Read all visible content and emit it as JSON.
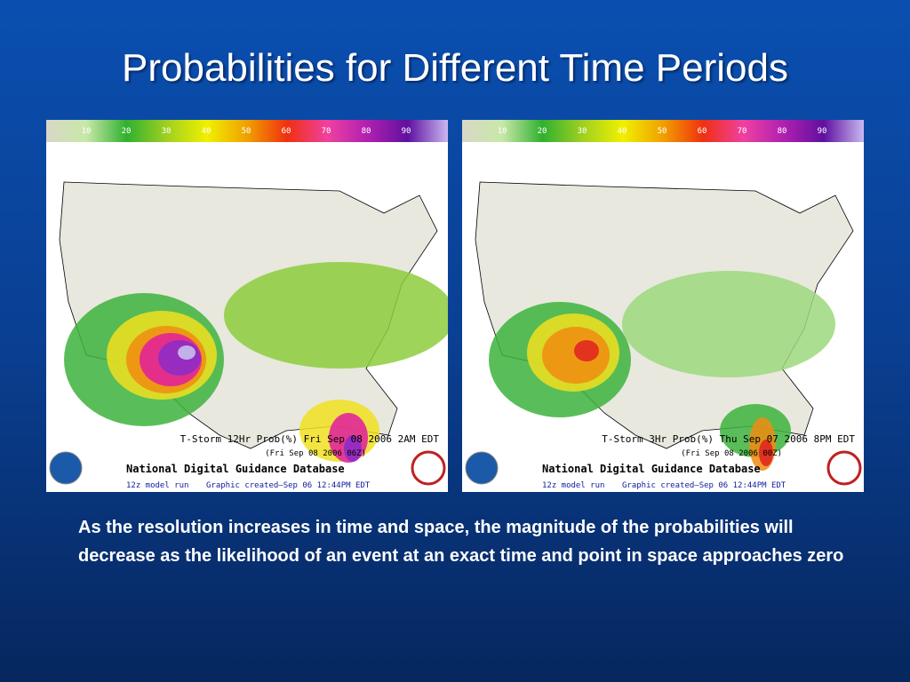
{
  "title": "Probabilities for Different Time Periods",
  "panels": [
    {
      "legend_labels": [
        10,
        20,
        30,
        40,
        50,
        60,
        70,
        80,
        90
      ],
      "product": "T-Storm 12Hr Prob(%) Fri Sep 08 2006  2AM EDT",
      "valid": "(Fri Sep 08 2006 06Z)",
      "database": "National Digital Guidance Database",
      "model_run": "12z model run",
      "created": "Graphic created–Sep 06 12:44PM EDT"
    },
    {
      "legend_labels": [
        10,
        20,
        30,
        40,
        50,
        60,
        70,
        80,
        90
      ],
      "product": "T-Storm 3Hr Prob(%) Thu Sep 07 2006  8PM EDT",
      "valid": "(Fri Sep 08 2006 00Z)",
      "database": "National Digital Guidance Database",
      "model_run": "12z model run",
      "created": "Graphic created–Sep 06 12:44PM EDT"
    }
  ],
  "caption": "As the resolution increases in time and space, the magnitude of the probabilities will decrease as the likelihood of an event at an exact time and point in space approaches zero"
}
